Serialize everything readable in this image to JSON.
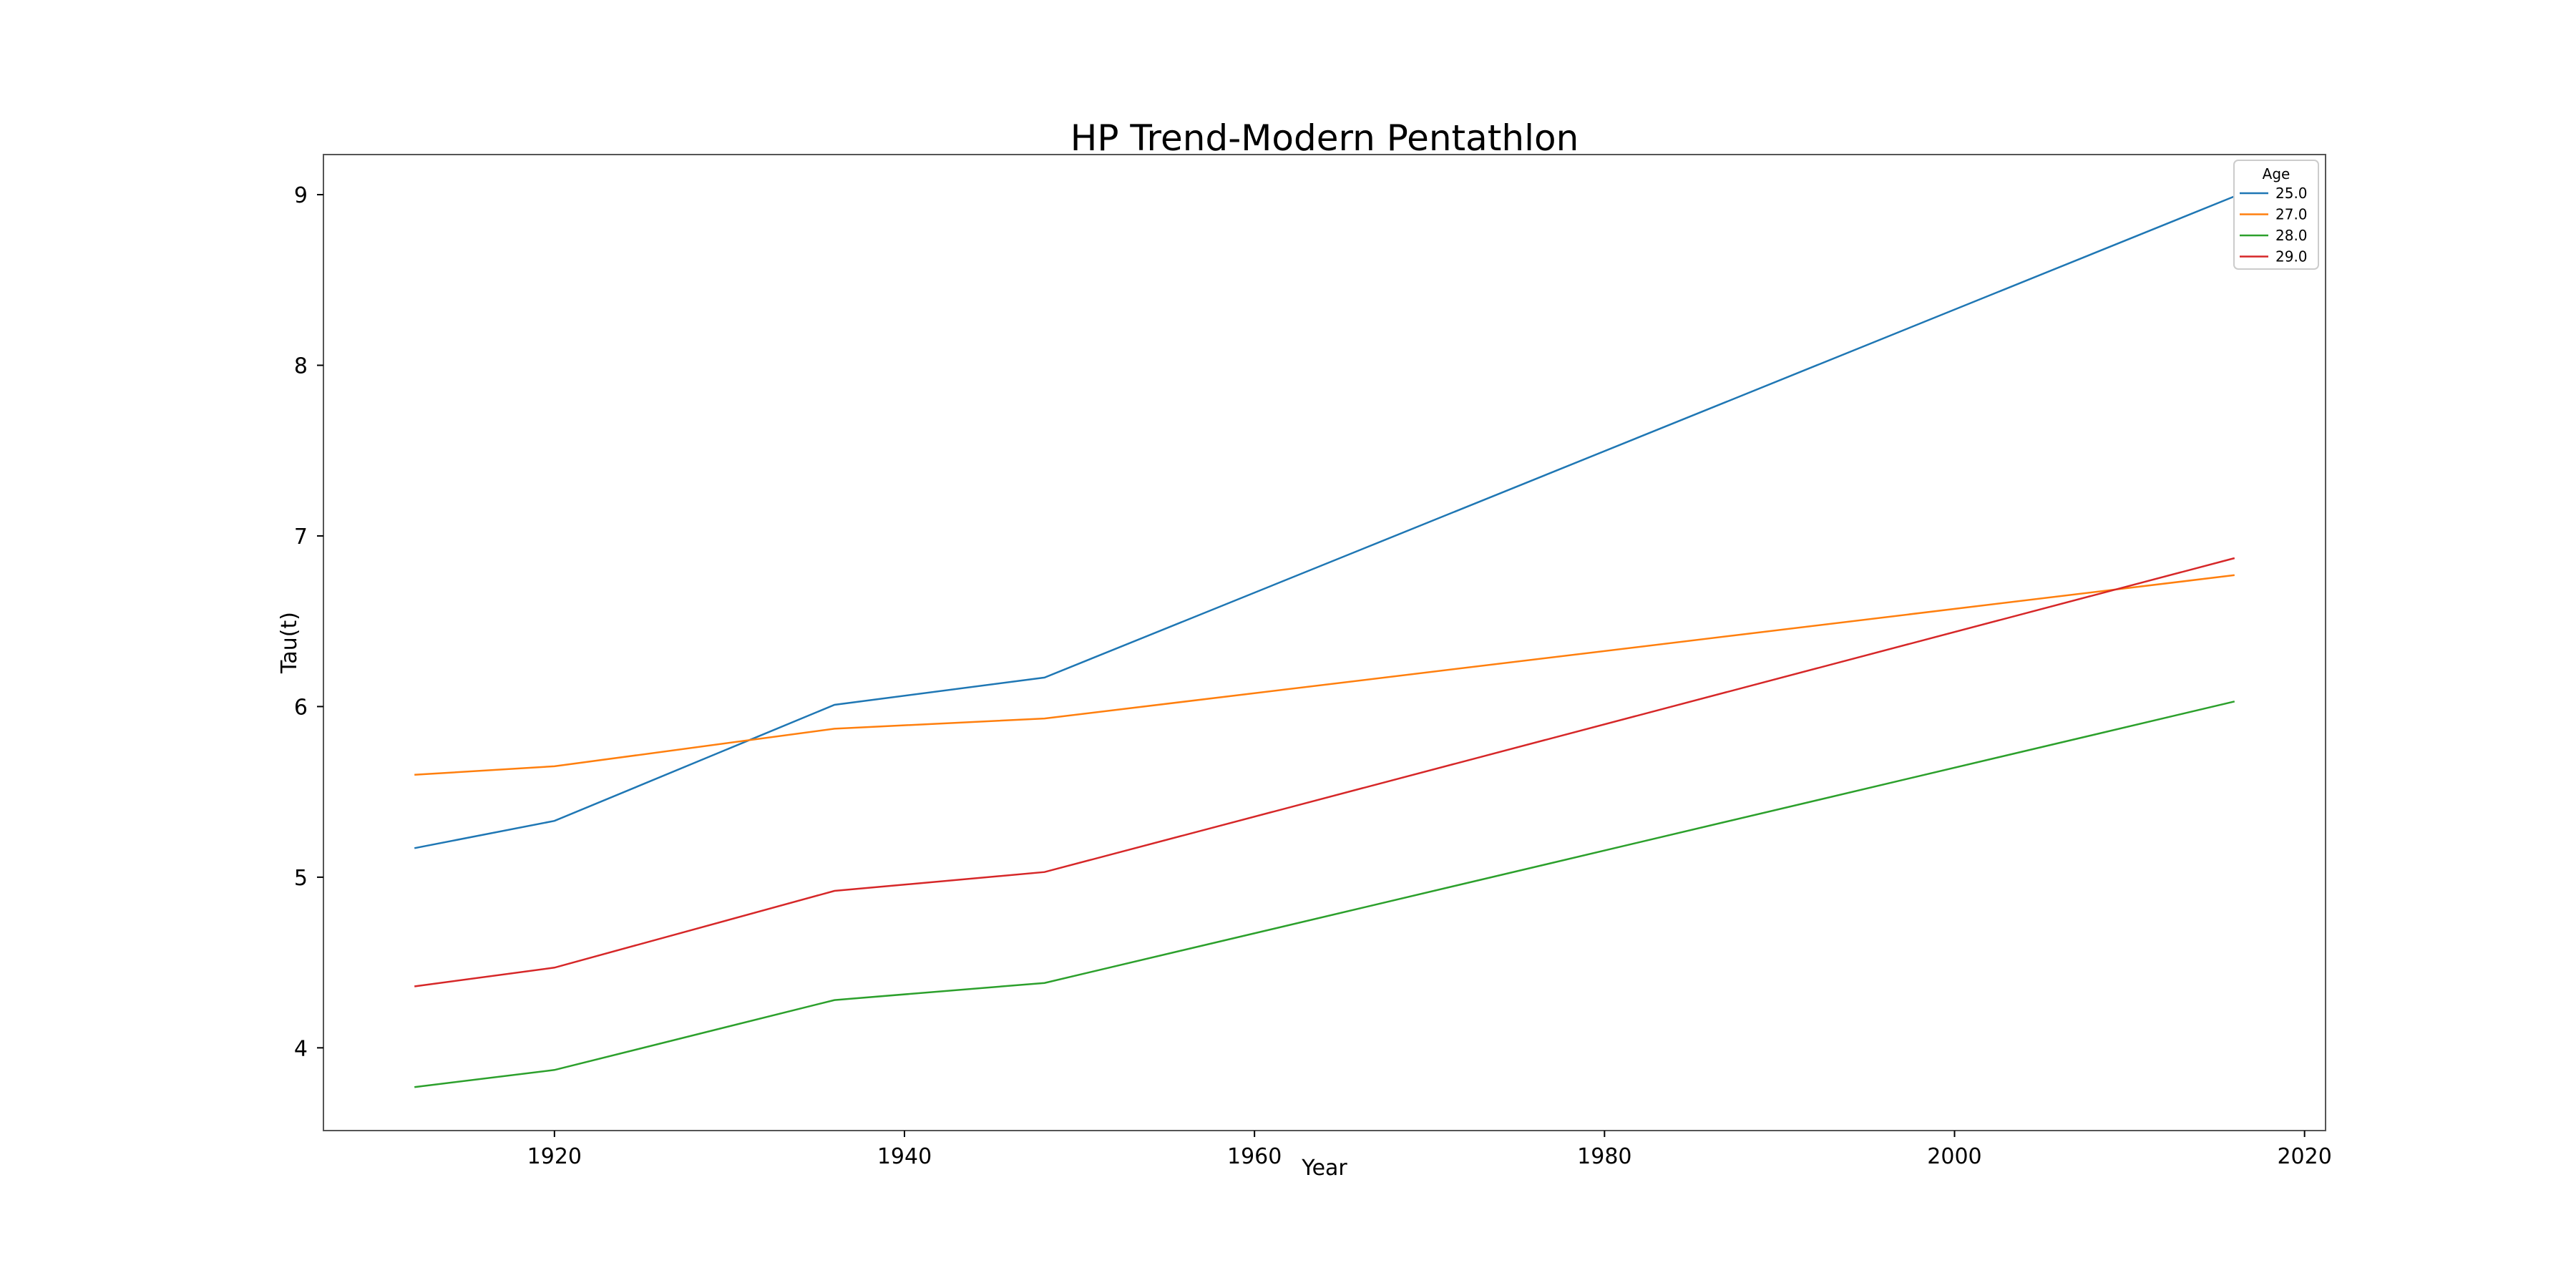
{
  "chart_data": {
    "type": "line",
    "title": "HP Trend-Modern Pentathlon",
    "xlabel": "Year",
    "ylabel": "Tau(t)",
    "xlim": [
      1906.8,
      2021.2
    ],
    "ylim": [
      3.515,
      9.235
    ],
    "xticks": [
      1920,
      1940,
      1960,
      1980,
      2000,
      2020
    ],
    "xtick_labels": [
      "1920",
      "1940",
      "1960",
      "1980",
      "2000",
      "2020"
    ],
    "yticks": [
      4,
      5,
      6,
      7,
      8,
      9
    ],
    "ytick_labels": [
      "4",
      "5",
      "6",
      "7",
      "8",
      "9"
    ],
    "grid": false,
    "legend": {
      "title": "Age",
      "position": "top-right"
    },
    "x": [
      1912,
      1920,
      1936,
      1948,
      2016
    ],
    "series": [
      {
        "name": "25.0",
        "color": "#1f77b4",
        "values": [
          5.17,
          5.33,
          6.01,
          6.17,
          8.99
        ]
      },
      {
        "name": "27.0",
        "color": "#ff7f0e",
        "values": [
          5.6,
          5.65,
          5.87,
          5.93,
          6.77
        ]
      },
      {
        "name": "28.0",
        "color": "#2ca02c",
        "values": [
          3.77,
          3.87,
          4.28,
          4.38,
          6.03
        ]
      },
      {
        "name": "29.0",
        "color": "#d62728",
        "values": [
          4.36,
          4.47,
          4.92,
          5.03,
          6.87
        ]
      }
    ]
  }
}
